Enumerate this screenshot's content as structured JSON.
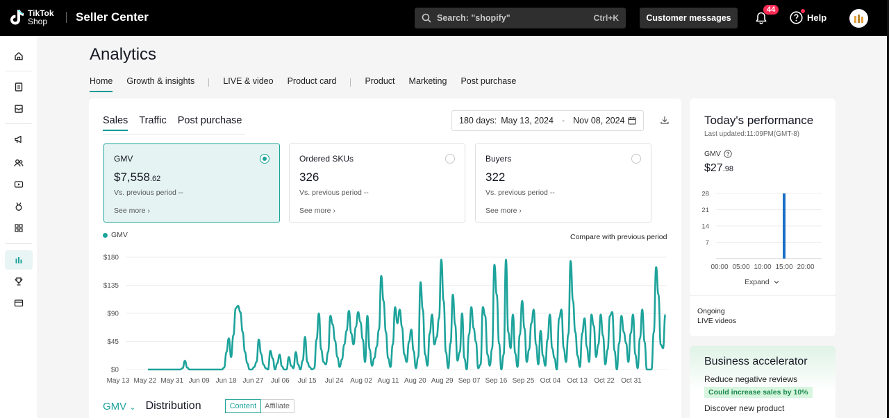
{
  "header": {
    "logo_line1": "TikTok",
    "logo_line2": "Shop",
    "app_title": "Seller Center",
    "search_placeholder": "Search: \"shopify\"",
    "search_shortcut": "Ctrl+K",
    "customer_messages": "Customer messages",
    "notification_count": "44",
    "help_label": "Help"
  },
  "sidebar": {
    "items": [
      "home-icon",
      "orders-icon",
      "products-icon",
      "marketing-icon",
      "customers-icon",
      "live-icon",
      "rewards-icon",
      "apps-icon",
      "analytics-icon",
      "trophy-icon",
      "finance-icon"
    ],
    "active": "analytics-icon"
  },
  "page": {
    "title": "Analytics",
    "nav_tabs": [
      "Home",
      "Growth & insights",
      "LIVE & video",
      "Product card",
      "Product",
      "Marketing",
      "Post purchase"
    ],
    "active_tab": "Home"
  },
  "main_card": {
    "subtabs": [
      "Sales",
      "Traffic",
      "Post purchase"
    ],
    "active_subtab": "Sales",
    "date_range": {
      "label": "180 days:",
      "start": "May 13, 2024",
      "separator": "-",
      "end": "Nov 08, 2024"
    },
    "metrics": [
      {
        "title": "GMV",
        "value_main": "$7,558",
        "value_decimal": ".62",
        "vs": "Vs. previous period  --",
        "more": "See more"
      },
      {
        "title": "Ordered SKUs",
        "value_main": "326",
        "value_decimal": "",
        "vs": "Vs. previous period  --",
        "more": "See more"
      },
      {
        "title": "Buyers",
        "value_main": "322",
        "value_decimal": "",
        "vs": "Vs. previous period  --",
        "more": "See more"
      }
    ],
    "legend_label": "GMV",
    "compare_label": "Compare with previous period",
    "bottom": {
      "selector": "GMV",
      "title": "Distribution",
      "segments": [
        "Content",
        "Affiliate"
      ],
      "active_segment": "Content"
    }
  },
  "chart_data": [
    {
      "type": "line",
      "series": [
        {
          "name": "GMV",
          "color": "#1da39b"
        }
      ],
      "x_tick_labels": [
        "May 13",
        "May 22",
        "May 31",
        "Jun 09",
        "Jun 18",
        "Jun 27",
        "Jul 06",
        "Jul 15",
        "Jul 24",
        "Aug 02",
        "Aug 11",
        "Aug 20",
        "Aug 29",
        "Sep 07",
        "Sep 16",
        "Sep 25",
        "Oct 04",
        "Oct 13",
        "Oct 22",
        "Oct 31"
      ],
      "y_tick_labels": [
        "$0",
        "$45",
        "$90",
        "$135",
        "$180"
      ],
      "ylim": [
        0,
        180
      ],
      "values": [
        0,
        0,
        0,
        0,
        0,
        0,
        0,
        0,
        0,
        0,
        0,
        0,
        0,
        0,
        0,
        2,
        14,
        3,
        0,
        0,
        0,
        0,
        0,
        0,
        0,
        0,
        0,
        0,
        0,
        0,
        0,
        0,
        0,
        3,
        28,
        50,
        20,
        55,
        98,
        102,
        92,
        60,
        28,
        10,
        0,
        0,
        4,
        12,
        48,
        25,
        8,
        2,
        0,
        30,
        18,
        0,
        10,
        24,
        5,
        0,
        0,
        20,
        6,
        2,
        28,
        8,
        0,
        14,
        52,
        12,
        4,
        0,
        2,
        48,
        90,
        32,
        12,
        8,
        28,
        86,
        72,
        46,
        20,
        4,
        16,
        40,
        62,
        94,
        58,
        40,
        68,
        92,
        76,
        48,
        12,
        86,
        32,
        6,
        18,
        36,
        64,
        150,
        110,
        60,
        18,
        4,
        40,
        100,
        74,
        96,
        68,
        24,
        12,
        44,
        64,
        30,
        2,
        20,
        140,
        96,
        24,
        6,
        58,
        88,
        40,
        52,
        82,
        176,
        110,
        28,
        2,
        42,
        120,
        72,
        14,
        28,
        90,
        18,
        0,
        56,
        100,
        66,
        44,
        2,
        8,
        100,
        86,
        24,
        6,
        34,
        168,
        120,
        42,
        0,
        24,
        176,
        60,
        34,
        88,
        26,
        4,
        56,
        110,
        66,
        12,
        32,
        74,
        96,
        40,
        8,
        62,
        22,
        6,
        48,
        88,
        34,
        18,
        0,
        82,
        96,
        34,
        12,
        56,
        174,
        110,
        60,
        22,
        4,
        58,
        82,
        36,
        12,
        88,
        70,
        20,
        40,
        88,
        54,
        8,
        32,
        86,
        92,
        30,
        0,
        42,
        86,
        60,
        42,
        12,
        58,
        88,
        24,
        2,
        50,
        96,
        44,
        0,
        0,
        0,
        60,
        164,
        120,
        40,
        34,
        88
      ]
    },
    {
      "type": "bar",
      "x_tick_labels": [
        "00:00",
        "05:00",
        "10:00",
        "15:00",
        "20:00"
      ],
      "y_tick_labels": [
        "28",
        "21",
        "14",
        "7"
      ],
      "ylim": [
        0,
        28
      ],
      "categories": [
        "15:00"
      ],
      "values": [
        27.98
      ]
    }
  ],
  "today": {
    "title": "Today's performance",
    "updated": "Last updated:11:09PM(GMT-8)",
    "gmv_label": "GMV",
    "gmv_main": "$27",
    "gmv_decimal": ".98",
    "expand": "Expand"
  },
  "ongoing": {
    "line1": "Ongoing",
    "line2": "LIVE videos"
  },
  "accelerator": {
    "title": "Business accelerator",
    "item1": "Reduce negative reviews",
    "tag1": "Could increase sales by 10%",
    "item2": "Discover new product"
  }
}
